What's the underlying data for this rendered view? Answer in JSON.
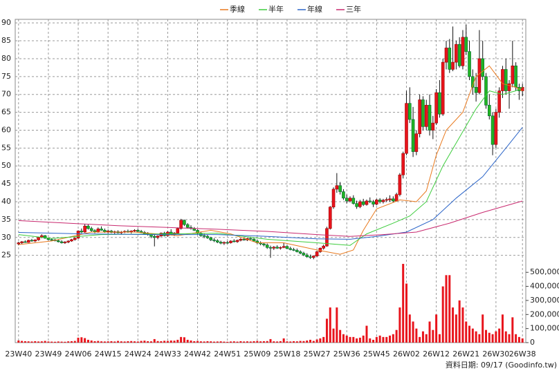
{
  "chart_data": {
    "type": "candlestick",
    "footnote": "資料日期: 09/17 (Goodinfo.tw)",
    "xlim": [
      -1,
      153
    ],
    "xticks": [
      {
        "value": 0,
        "label": "23W40"
      },
      {
        "value": 9,
        "label": "23W49"
      },
      {
        "value": 18,
        "label": "24W06"
      },
      {
        "value": 27,
        "label": "24W15"
      },
      {
        "value": 36,
        "label": "24W24"
      },
      {
        "value": 45,
        "label": "24W33"
      },
      {
        "value": 54,
        "label": "24W42"
      },
      {
        "value": 63,
        "label": "24W51"
      },
      {
        "value": 72,
        "label": "25W09"
      },
      {
        "value": 81,
        "label": "25W18"
      },
      {
        "value": 90,
        "label": "25W27"
      },
      {
        "value": 99,
        "label": "25W36"
      },
      {
        "value": 108,
        "label": "25W45"
      },
      {
        "value": 117,
        "label": "26W02"
      },
      {
        "value": 126,
        "label": "26W12"
      },
      {
        "value": 135,
        "label": "26W21"
      },
      {
        "value": 144,
        "label": "26W30"
      },
      {
        "value": 152,
        "label": "26W38"
      }
    ],
    "ylim": [
      23,
      91
    ],
    "yticks": [
      25,
      30,
      35,
      40,
      45,
      50,
      55,
      60,
      65,
      70,
      75,
      80,
      85,
      90
    ],
    "y2lim": [
      0,
      570000
    ],
    "y2ticks": [
      {
        "value": 0,
        "label": "0"
      },
      {
        "value": 100000,
        "label": "100,000"
      },
      {
        "value": 200000,
        "label": "200,000"
      },
      {
        "value": 300000,
        "label": "300,000"
      },
      {
        "value": 400000,
        "label": "400,000"
      },
      {
        "value": 500000,
        "label": "500,000"
      }
    ],
    "grid": true,
    "up_color": "#e8141c",
    "down_color": "#22b422",
    "volume_color": "#e8141c",
    "ohlc": [
      [
        28.2,
        28.8,
        27.8,
        28.5
      ],
      [
        28.5,
        29,
        28.2,
        28.8
      ],
      [
        28.8,
        29.2,
        28.5,
        28.6
      ],
      [
        28.6,
        29.4,
        28.5,
        29.2
      ],
      [
        29.2,
        29.6,
        28.8,
        29
      ],
      [
        29,
        29.5,
        28.7,
        29.3
      ],
      [
        29.3,
        30.2,
        29.1,
        30
      ],
      [
        30,
        30.9,
        29.8,
        30.5
      ],
      [
        30.5,
        30.7,
        29.6,
        29.8
      ],
      [
        29.8,
        30,
        29.2,
        29.4
      ],
      [
        29.4,
        29.8,
        29,
        29.3
      ],
      [
        29.3,
        29.6,
        28.9,
        29.1
      ],
      [
        29.1,
        29.4,
        28.6,
        28.8
      ],
      [
        28.8,
        29.2,
        28.3,
        28.5
      ],
      [
        28.5,
        29,
        28.2,
        28.7
      ],
      [
        28.7,
        29.2,
        28.4,
        29
      ],
      [
        29,
        29.6,
        28.8,
        29.4
      ],
      [
        29.4,
        30,
        29.1,
        29.8
      ],
      [
        29.8,
        32,
        29.6,
        31.8
      ],
      [
        31.8,
        32.5,
        31.2,
        31.5
      ],
      [
        31.5,
        33.8,
        31.3,
        33.2
      ],
      [
        33.2,
        33.6,
        32.2,
        32.5
      ],
      [
        32.5,
        33,
        31.6,
        31.9
      ],
      [
        31.9,
        32.3,
        31.2,
        31.5
      ],
      [
        31.5,
        32.8,
        31.3,
        32.4
      ],
      [
        32.4,
        33.1,
        31.9,
        32
      ],
      [
        32,
        32.5,
        31.3,
        31.6
      ],
      [
        31.6,
        32.2,
        31.1,
        31.8
      ],
      [
        31.8,
        32.1,
        31.2,
        31.4
      ],
      [
        31.4,
        31.9,
        31,
        31.6
      ],
      [
        31.6,
        32,
        31.1,
        31.3
      ],
      [
        31.3,
        31.8,
        30.9,
        31.5
      ],
      [
        31.5,
        32,
        31.2,
        31.7
      ],
      [
        31.7,
        32.2,
        31.3,
        31.5
      ],
      [
        31.5,
        32,
        31.1,
        31.8
      ],
      [
        31.8,
        32.3,
        31.4,
        32
      ],
      [
        32,
        32.4,
        31.5,
        31.7
      ],
      [
        31.7,
        32.1,
        31.2,
        31.4
      ],
      [
        31.4,
        31.8,
        30.9,
        31.1
      ],
      [
        31.1,
        31.5,
        30.5,
        30.8
      ],
      [
        30.8,
        31.2,
        29.8,
        30.3
      ],
      [
        30.3,
        30.8,
        27.5,
        30
      ],
      [
        30,
        30.6,
        29.5,
        30.4
      ],
      [
        30.4,
        31.4,
        30.2,
        31.2
      ],
      [
        31.2,
        31.6,
        30.3,
        30.5
      ],
      [
        30.5,
        31.8,
        30.2,
        31.5
      ],
      [
        31.5,
        32.3,
        30.6,
        30.9
      ],
      [
        30.9,
        31.5,
        30.4,
        31.2
      ],
      [
        31.2,
        32.8,
        31,
        32.5
      ],
      [
        32.5,
        35.2,
        32.2,
        34.8
      ],
      [
        34.8,
        35,
        33.2,
        33.6
      ],
      [
        33.6,
        34,
        32.5,
        32.8
      ],
      [
        32.8,
        33.4,
        32.2,
        32.5
      ],
      [
        32.5,
        32.9,
        31.8,
        32
      ],
      [
        32,
        32.3,
        30.8,
        31.2
      ],
      [
        31.2,
        31.6,
        30.2,
        30.5
      ],
      [
        30.5,
        31,
        29.8,
        30.3
      ],
      [
        30.3,
        30.8,
        29.6,
        29.9
      ],
      [
        29.9,
        30.2,
        29,
        29.3
      ],
      [
        29.3,
        29.8,
        28.7,
        29.1
      ],
      [
        29.1,
        29.5,
        28.4,
        28.7
      ],
      [
        28.7,
        29.1,
        28.1,
        28.4
      ],
      [
        28.4,
        28.9,
        27.9,
        28.6
      ],
      [
        28.6,
        29,
        28.2,
        28.5
      ],
      [
        28.5,
        29.2,
        28.3,
        29
      ],
      [
        29,
        29.5,
        28.6,
        28.8
      ],
      [
        28.8,
        29.4,
        28.5,
        29.2
      ],
      [
        29.2,
        29.8,
        28.9,
        29.5
      ],
      [
        29.5,
        30,
        29.1,
        29.3
      ],
      [
        29.3,
        29.9,
        29,
        29.7
      ],
      [
        29.7,
        30.2,
        29.3,
        29.5
      ],
      [
        29.5,
        29.9,
        28.8,
        29
      ],
      [
        29,
        29.3,
        28.2,
        28.5
      ],
      [
        28.5,
        28.9,
        27.8,
        28.2
      ],
      [
        28.2,
        28.6,
        27.5,
        27.9
      ],
      [
        27.9,
        28.3,
        26.8,
        27.2
      ],
      [
        27.2,
        27.7,
        24.3,
        27
      ],
      [
        27,
        27.6,
        26.5,
        27.3
      ],
      [
        27.3,
        27.8,
        26.8,
        27
      ],
      [
        27,
        27.5,
        26.6,
        27.2
      ],
      [
        27.2,
        28.5,
        27,
        27.5
      ],
      [
        27.5,
        27.8,
        26.7,
        26.9
      ],
      [
        26.9,
        27.4,
        26.4,
        26.6
      ],
      [
        26.6,
        27.1,
        26.2,
        26.4
      ],
      [
        26.4,
        26.9,
        25.8,
        26
      ],
      [
        26,
        26.4,
        25.3,
        25.6
      ],
      [
        25.6,
        26,
        24.8,
        25.1
      ],
      [
        25.1,
        25.6,
        24.3,
        24.6
      ],
      [
        24.6,
        25.2,
        24,
        24.4
      ],
      [
        24.4,
        25,
        23.9,
        24.8
      ],
      [
        24.8,
        26.3,
        24.5,
        26
      ],
      [
        26,
        27.2,
        25.7,
        27
      ],
      [
        27,
        28,
        26.6,
        27.6
      ],
      [
        27.6,
        33,
        27.4,
        32.5
      ],
      [
        32.5,
        38.8,
        32.2,
        38.5
      ],
      [
        38.5,
        44,
        38,
        43.5
      ],
      [
        43.5,
        48,
        42.5,
        44.5
      ],
      [
        44.5,
        45.5,
        42,
        42.8
      ],
      [
        42.8,
        43.5,
        40.5,
        41
      ],
      [
        41,
        42,
        39.5,
        40.2
      ],
      [
        40.2,
        41.5,
        39.8,
        41
      ],
      [
        41,
        41.8,
        39.2,
        39.5
      ],
      [
        39.5,
        40.3,
        38,
        38.6
      ],
      [
        38.6,
        40.5,
        38.2,
        40
      ],
      [
        40,
        40.8,
        38.8,
        39.2
      ],
      [
        39.2,
        40.6,
        38.9,
        40.2
      ],
      [
        40.2,
        41.2,
        39.6,
        40
      ],
      [
        40,
        40.5,
        38.5,
        39.3
      ],
      [
        39.3,
        40.8,
        39,
        40.5
      ],
      [
        40.5,
        41,
        39.5,
        40
      ],
      [
        40,
        40.8,
        39.5,
        40.4
      ],
      [
        40.4,
        41.2,
        39.9,
        40.6
      ],
      [
        40.5,
        41.8,
        40,
        40.8
      ],
      [
        40.8,
        41.5,
        39.8,
        40.2
      ],
      [
        40.2,
        42.5,
        40,
        42
      ],
      [
        42,
        48,
        41.5,
        47.5
      ],
      [
        47.5,
        54,
        46.5,
        53.5
      ],
      [
        53.5,
        71,
        53,
        67.5
      ],
      [
        67.5,
        72,
        62,
        63
      ],
      [
        63,
        66.5,
        52.5,
        54
      ],
      [
        54,
        60,
        53,
        59
      ],
      [
        59,
        70,
        58,
        68.5
      ],
      [
        68.5,
        69.5,
        60,
        61
      ],
      [
        61,
        68.5,
        60,
        67
      ],
      [
        67,
        70,
        58.5,
        60
      ],
      [
        60,
        64,
        57.5,
        62
      ],
      [
        62,
        71.5,
        61.5,
        70.5
      ],
      [
        70.5,
        74,
        63.5,
        64.5
      ],
      [
        64.5,
        80,
        64,
        79
      ],
      [
        79,
        85,
        77,
        83
      ],
      [
        83,
        85.5,
        76,
        77
      ],
      [
        77,
        89,
        76.5,
        79
      ],
      [
        79,
        85,
        77,
        84
      ],
      [
        84,
        86,
        77.5,
        78
      ],
      [
        78,
        88,
        77,
        86
      ],
      [
        86,
        89.5,
        81,
        82
      ],
      [
        82,
        85,
        74,
        75
      ],
      [
        75,
        77,
        70,
        72
      ],
      [
        72,
        76,
        68,
        70.5
      ],
      [
        70.5,
        88,
        70,
        80
      ],
      [
        80,
        85,
        74,
        75
      ],
      [
        75,
        76,
        66,
        67
      ],
      [
        67,
        70,
        63,
        64
      ],
      [
        64,
        65,
        53,
        56
      ],
      [
        56,
        66,
        55,
        65
      ],
      [
        65,
        72,
        63.5,
        71
      ],
      [
        71,
        78,
        69,
        77
      ],
      [
        77,
        80,
        70,
        71
      ],
      [
        71,
        74,
        66,
        73
      ],
      [
        73,
        85,
        72,
        78
      ],
      [
        78,
        79,
        71,
        72
      ],
      [
        72,
        73,
        68.5,
        71
      ],
      [
        71,
        73,
        69.5,
        72
      ]
    ],
    "volume": [
      15000,
      12000,
      10000,
      9000,
      8000,
      10000,
      8000,
      9000,
      12000,
      8000,
      7000,
      6000,
      8000,
      7000,
      6000,
      9000,
      10000,
      12000,
      35000,
      38000,
      32000,
      20000,
      15000,
      10000,
      12000,
      9000,
      8000,
      9000,
      10000,
      8000,
      12000,
      9000,
      8000,
      10000,
      11000,
      9000,
      8000,
      12000,
      14000,
      10000,
      9000,
      25000,
      11000,
      10000,
      13000,
      12000,
      15000,
      14000,
      20000,
      40000,
      38000,
      20000,
      15000,
      10000,
      12000,
      9000,
      8000,
      10000,
      9000,
      7000,
      8000,
      9000,
      7000,
      6000,
      8000,
      9000,
      7000,
      10000,
      8000,
      9000,
      8000,
      10000,
      12000,
      9000,
      10000,
      11000,
      25000,
      9000,
      8000,
      10000,
      30000,
      9000,
      8000,
      10000,
      9000,
      12000,
      11000,
      15000,
      20000,
      12000,
      22000,
      30000,
      40000,
      170000,
      250000,
      100000,
      250000,
      90000,
      60000,
      50000,
      40000,
      40000,
      30000,
      35000,
      50000,
      120000,
      30000,
      20000,
      40000,
      50000,
      40000,
      40000,
      50000,
      60000,
      90000,
      250000,
      560000,
      420000,
      200000,
      150000,
      100000,
      40000,
      80000,
      60000,
      150000,
      90000,
      200000,
      60000,
      400000,
      480000,
      480000,
      250000,
      200000,
      300000,
      250000,
      150000,
      120000,
      100000,
      80000,
      60000,
      200000,
      90000,
      70000,
      60000,
      80000,
      100000,
      200000,
      80000,
      60000,
      180000,
      60000,
      40000,
      30000
    ],
    "series": [
      {
        "name": "季線",
        "color": "#e8781c",
        "x": [
          0,
          10,
          22,
          35,
          48,
          58,
          64,
          72,
          80,
          90,
          97,
          101,
          104,
          108,
          115,
          120,
          123,
          126,
          129,
          134,
          138,
          142,
          146,
          150,
          152
        ],
        "values": [
          28,
          29,
          31.5,
          31.5,
          30.5,
          32,
          31,
          28.5,
          28.5,
          26.5,
          25.3,
          26.5,
          32,
          38,
          40.5,
          40,
          43,
          53,
          60,
          65,
          75,
          78,
          73,
          72,
          71
        ]
      },
      {
        "name": "半年",
        "color": "#3ccc3c",
        "x": [
          0,
          10,
          25,
          45,
          60,
          75,
          90,
          100,
          105,
          113,
          118,
          123,
          128,
          133,
          138,
          142,
          146,
          150,
          152
        ],
        "values": [
          30.8,
          29.7,
          30.8,
          31,
          31.2,
          29.5,
          28.5,
          27.8,
          31,
          34,
          36,
          40,
          50,
          58,
          66,
          71,
          70,
          71,
          72
        ]
      },
      {
        "name": "年線",
        "color": "#2a64c8",
        "x": [
          0,
          20,
          40,
          60,
          75,
          90,
          100,
          108,
          117,
          125,
          132,
          140,
          147,
          152
        ],
        "values": [
          31.4,
          31,
          30.8,
          30.8,
          30.3,
          29.6,
          29.5,
          30.3,
          31.5,
          35,
          41,
          47,
          55,
          60.8
        ]
      },
      {
        "name": "三年",
        "color": "#c8286e",
        "x": [
          0,
          15,
          30,
          45,
          60,
          75,
          90,
          100,
          110,
          120,
          130,
          140,
          152
        ],
        "values": [
          34.7,
          34,
          33.3,
          32.8,
          32.3,
          31.7,
          30.8,
          30.3,
          30.8,
          31.5,
          34,
          37,
          40.2
        ]
      }
    ]
  }
}
